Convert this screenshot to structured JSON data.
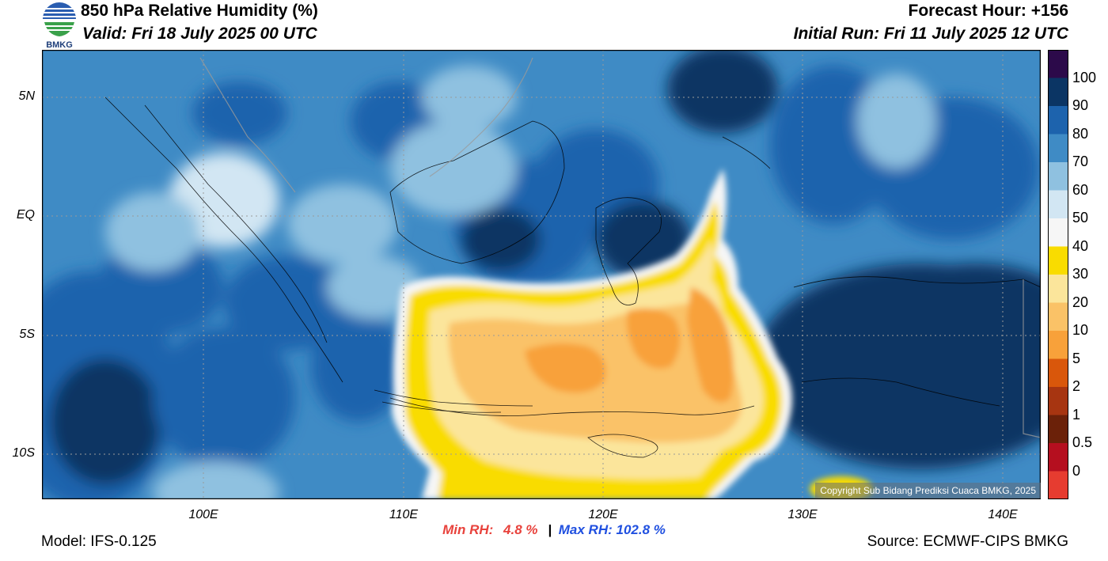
{
  "header": {
    "title": "850 hPa Relative Humidity (%)",
    "valid": "Valid: Fri 18 July 2025 00 UTC",
    "forecast_hour": "Forecast Hour: +156",
    "initial_run": "Initial Run: Fri 11 July 2025 12 UTC"
  },
  "logo": {
    "text": "BMKG",
    "icon": "bmkg-logo-icon"
  },
  "map": {
    "lat_labels": [
      "5N",
      "EQ",
      "5S",
      "10S"
    ],
    "lon_labels": [
      "100E",
      "110E",
      "120E",
      "130E",
      "140E"
    ],
    "copyright": "Copyright Sub Bidang Prediksi Cuaca BMKG, 2025",
    "grid": "dotted"
  },
  "colorbar": {
    "labels": [
      "100",
      "90",
      "80",
      "70",
      "60",
      "50",
      "40",
      "30",
      "20",
      "10",
      "5",
      "2",
      "1",
      "0.5",
      "0"
    ],
    "colors": [
      "#2c0a4a",
      "#0b3564",
      "#1d63ad",
      "#3f8bc5",
      "#8fc1e0",
      "#d2e6f3",
      "#f6f6f6",
      "#f9dc00",
      "#fbe59b",
      "#fac267",
      "#f8a13a",
      "#d9570b",
      "#a73511",
      "#6b2109",
      "#b50f1f",
      "#e63c30"
    ]
  },
  "stats": {
    "min_label": "Min RH:",
    "min_value": "4.8 %",
    "separator": "|",
    "max_label": "Max RH:",
    "max_value": "102.8 %"
  },
  "footer": {
    "model": "Model: IFS-0.125",
    "source": "Source: ECMWF-CIPS BMKG"
  }
}
